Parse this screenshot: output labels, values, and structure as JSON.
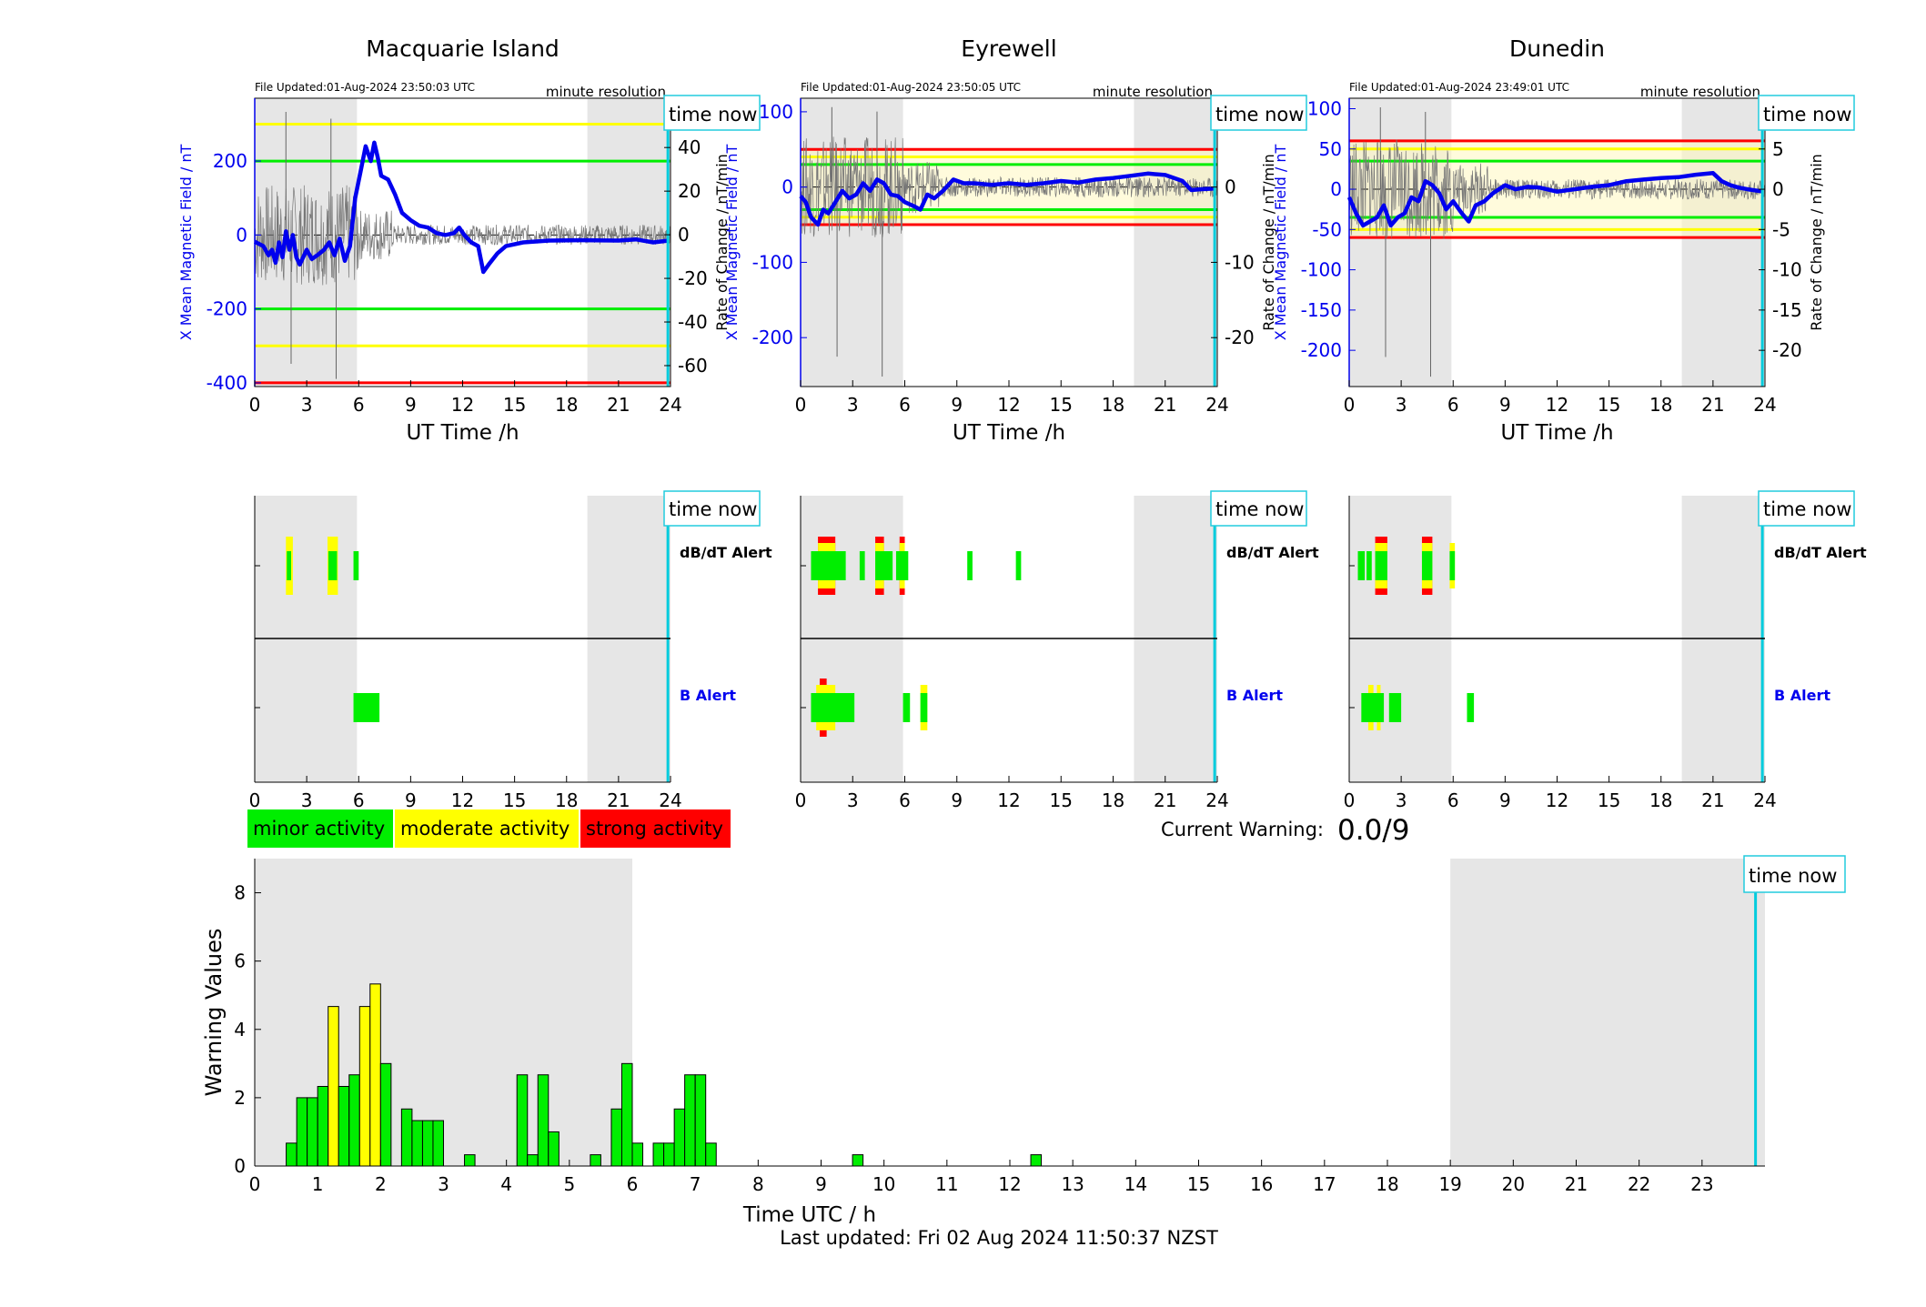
{
  "stations": [
    {
      "name": "Macquarie Island",
      "file_updated": "File Updated:01-Aug-2024 23:50:03 UTC",
      "resolution": "minute resolution",
      "time_now_label": "time now",
      "left_ylabel": "X Mean Magnetic Field / nT",
      "right_ylabel": "Rate of Change / nT/min",
      "x_label": "UT Time /h",
      "x_ticks": [
        0,
        3,
        6,
        9,
        12,
        15,
        18,
        21,
        24
      ],
      "left_ylim": [
        -410,
        370
      ],
      "left_ticks": [
        -400,
        -200,
        0,
        200
      ],
      "right_ylim": [
        -69.6,
        62.6
      ],
      "right_ticks": [
        -60,
        -40,
        -20,
        0,
        20,
        40,
        60
      ],
      "thresholds": [
        {
          "value": 300,
          "color": "#ffff00"
        },
        {
          "value": -300,
          "color": "#ffff00"
        },
        {
          "value": 200,
          "color": "#00ee00"
        },
        {
          "value": -200,
          "color": "#00ee00"
        },
        {
          "value": -400,
          "color": "#ff0000"
        }
      ],
      "band": null,
      "night_shading_hours": [
        [
          0,
          5.9
        ],
        [
          19.2,
          24
        ]
      ],
      "time_now_hour": 23.85,
      "field_trace": [
        [
          0,
          -18
        ],
        [
          0.5,
          -30
        ],
        [
          0.8,
          -55
        ],
        [
          1.0,
          -40
        ],
        [
          1.2,
          -75
        ],
        [
          1.4,
          -20
        ],
        [
          1.6,
          -60
        ],
        [
          1.8,
          10
        ],
        [
          2.0,
          -40
        ],
        [
          2.2,
          0
        ],
        [
          2.4,
          -60
        ],
        [
          2.6,
          -80
        ],
        [
          3.0,
          -40
        ],
        [
          3.3,
          -65
        ],
        [
          3.6,
          -55
        ],
        [
          4.0,
          -40
        ],
        [
          4.3,
          -20
        ],
        [
          4.6,
          -55
        ],
        [
          4.9,
          -10
        ],
        [
          5.2,
          -70
        ],
        [
          5.5,
          -30
        ],
        [
          5.8,
          100
        ],
        [
          6.1,
          170
        ],
        [
          6.4,
          240
        ],
        [
          6.7,
          200
        ],
        [
          6.9,
          250
        ],
        [
          7.1,
          210
        ],
        [
          7.3,
          160
        ],
        [
          7.7,
          150
        ],
        [
          8.1,
          110
        ],
        [
          8.5,
          60
        ],
        [
          9.0,
          40
        ],
        [
          9.5,
          25
        ],
        [
          10.0,
          20
        ],
        [
          10.5,
          5
        ],
        [
          11.0,
          0
        ],
        [
          11.5,
          5
        ],
        [
          11.8,
          20
        ],
        [
          12.1,
          0
        ],
        [
          12.5,
          -20
        ],
        [
          12.9,
          -30
        ],
        [
          13.2,
          -100
        ],
        [
          13.5,
          -80
        ],
        [
          14.0,
          -50
        ],
        [
          14.5,
          -30
        ],
        [
          15.5,
          -20
        ],
        [
          17.0,
          -15
        ],
        [
          19.0,
          -14
        ],
        [
          21.0,
          -15
        ],
        [
          22.0,
          -12
        ],
        [
          23.0,
          -20
        ],
        [
          23.9,
          -15
        ]
      ],
      "rate_trace_hint": "fluctuating grey rate-of-change trace",
      "dbdt_blocks": [
        {
          "t0": 1.8,
          "t1": 2.2,
          "color": "#ffff00",
          "tall": true
        },
        {
          "t0": 1.85,
          "t1": 2.1,
          "color": "#00ee00",
          "tall": false
        },
        {
          "t0": 4.2,
          "t1": 4.8,
          "color": "#ffff00",
          "tall": true
        },
        {
          "t0": 4.25,
          "t1": 4.75,
          "color": "#00ee00",
          "tall": false
        },
        {
          "t0": 5.7,
          "t1": 6.0,
          "color": "#00ee00",
          "tall": false
        }
      ],
      "b_blocks": [
        {
          "t0": 5.7,
          "t1": 7.2,
          "color": "#00ee00",
          "tall": false
        }
      ]
    },
    {
      "name": "Eyrewell",
      "file_updated": "File Updated:01-Aug-2024 23:50:05 UTC",
      "resolution": "minute resolution",
      "time_now_label": "time now",
      "left_ylabel": "X Mean Magnetic Field / nT",
      "right_ylabel": "Rate of Change / nT/min",
      "x_label": "UT Time /h",
      "x_ticks": [
        0,
        3,
        6,
        9,
        12,
        15,
        18,
        21,
        24
      ],
      "left_ylim": [
        -265,
        118
      ],
      "left_ticks": [
        -200,
        -100,
        0,
        100
      ],
      "right_ylim": [
        -26.5,
        11.8
      ],
      "right_ticks": [
        -20,
        -10,
        0,
        10
      ],
      "thresholds": [
        {
          "value": 50,
          "color": "#ff0000"
        },
        {
          "value": -50,
          "color": "#ff0000"
        },
        {
          "value": 40,
          "color": "#ffff00"
        },
        {
          "value": -40,
          "color": "#ffff00"
        },
        {
          "value": 30,
          "color": "#00ee00"
        },
        {
          "value": -30,
          "color": "#00ee00"
        }
      ],
      "band": {
        "from": -50,
        "to": 50,
        "color": "#fff8c0"
      },
      "night_shading_hours": [
        [
          0,
          5.9
        ],
        [
          19.2,
          24
        ]
      ],
      "time_now_hour": 23.85,
      "field_trace": [
        [
          0,
          -12
        ],
        [
          0.3,
          -20
        ],
        [
          0.6,
          -40
        ],
        [
          1.0,
          -50
        ],
        [
          1.3,
          -30
        ],
        [
          1.6,
          -35
        ],
        [
          2.0,
          -20
        ],
        [
          2.4,
          -5
        ],
        [
          2.8,
          -15
        ],
        [
          3.2,
          -10
        ],
        [
          3.6,
          5
        ],
        [
          4.0,
          -5
        ],
        [
          4.4,
          10
        ],
        [
          4.8,
          5
        ],
        [
          5.2,
          -10
        ],
        [
          5.6,
          -12
        ],
        [
          6.0,
          -20
        ],
        [
          6.5,
          -25
        ],
        [
          6.9,
          -30
        ],
        [
          7.3,
          -10
        ],
        [
          7.7,
          -15
        ],
        [
          8.2,
          -5
        ],
        [
          8.8,
          10
        ],
        [
          9.4,
          5
        ],
        [
          10.0,
          5
        ],
        [
          11.0,
          3
        ],
        [
          12.0,
          5
        ],
        [
          13.0,
          3
        ],
        [
          14.0,
          5
        ],
        [
          15.0,
          8
        ],
        [
          16.0,
          6
        ],
        [
          17.0,
          10
        ],
        [
          18.0,
          12
        ],
        [
          19.0,
          15
        ],
        [
          20.0,
          18
        ],
        [
          21.0,
          16
        ],
        [
          22.0,
          8
        ],
        [
          22.5,
          -4
        ],
        [
          23.0,
          -3
        ],
        [
          23.9,
          -2
        ]
      ],
      "dbdt_blocks": [
        {
          "t0": 1.0,
          "t1": 2.0,
          "color": "#ff0000",
          "tall": true
        },
        {
          "t0": 1.0,
          "t1": 2.0,
          "color": "#ffff00",
          "tall": "mid"
        },
        {
          "t0": 0.6,
          "t1": 2.6,
          "color": "#00ee00",
          "tall": false
        },
        {
          "t0": 3.4,
          "t1": 3.7,
          "color": "#00ee00",
          "tall": false
        },
        {
          "t0": 4.3,
          "t1": 4.8,
          "color": "#ff0000",
          "tall": true
        },
        {
          "t0": 4.3,
          "t1": 4.8,
          "color": "#ffff00",
          "tall": "mid"
        },
        {
          "t0": 4.3,
          "t1": 5.3,
          "color": "#00ee00",
          "tall": false
        },
        {
          "t0": 5.7,
          "t1": 6.0,
          "color": "#ff0000",
          "tall": true
        },
        {
          "t0": 5.7,
          "t1": 6.0,
          "color": "#ffff00",
          "tall": "mid"
        },
        {
          "t0": 5.5,
          "t1": 6.2,
          "color": "#00ee00",
          "tall": false
        },
        {
          "t0": 9.6,
          "t1": 9.9,
          "color": "#00ee00",
          "tall": false
        },
        {
          "t0": 12.4,
          "t1": 12.7,
          "color": "#00ee00",
          "tall": false
        }
      ],
      "b_blocks": [
        {
          "t0": 1.1,
          "t1": 1.5,
          "color": "#ff0000",
          "tall": true
        },
        {
          "t0": 0.9,
          "t1": 2.0,
          "color": "#ffff00",
          "tall": "mid"
        },
        {
          "t0": 0.6,
          "t1": 3.1,
          "color": "#00ee00",
          "tall": false
        },
        {
          "t0": 5.9,
          "t1": 6.3,
          "color": "#00ee00",
          "tall": false
        },
        {
          "t0": 6.9,
          "t1": 7.3,
          "color": "#ffff00",
          "tall": "mid"
        },
        {
          "t0": 6.9,
          "t1": 7.3,
          "color": "#00ee00",
          "tall": false
        }
      ]
    },
    {
      "name": "Dunedin",
      "file_updated": "File Updated:01-Aug-2024 23:49:01 UTC",
      "resolution": "minute resolution",
      "time_now_label": "time now",
      "left_ylabel": "X Mean Magnetic Field / nT",
      "right_ylabel": "Rate of Change / nT/min",
      "x_label": "UT Time /h",
      "x_ticks": [
        0,
        3,
        6,
        9,
        12,
        15,
        18,
        21,
        24
      ],
      "left_ylim": [
        -245,
        113
      ],
      "left_ticks": [
        -200,
        -150,
        -100,
        -50,
        0,
        50,
        100
      ],
      "right_ylim": [
        -24.5,
        11.3
      ],
      "right_ticks": [
        -20,
        -15,
        -10,
        -5,
        0,
        5,
        10
      ],
      "thresholds": [
        {
          "value": 60,
          "color": "#ff0000"
        },
        {
          "value": -60,
          "color": "#ff0000"
        },
        {
          "value": 50,
          "color": "#ffff00"
        },
        {
          "value": -50,
          "color": "#ffff00"
        },
        {
          "value": 35,
          "color": "#00ee00"
        },
        {
          "value": -35,
          "color": "#00ee00"
        }
      ],
      "band": {
        "from": -60,
        "to": 60,
        "color": "#fff8c0"
      },
      "night_shading_hours": [
        [
          0,
          5.9
        ],
        [
          19.2,
          24
        ]
      ],
      "time_now_hour": 23.85,
      "field_trace": [
        [
          0,
          -10
        ],
        [
          0.4,
          -30
        ],
        [
          0.8,
          -45
        ],
        [
          1.2,
          -40
        ],
        [
          1.6,
          -35
        ],
        [
          2.0,
          -20
        ],
        [
          2.4,
          -45
        ],
        [
          2.8,
          -35
        ],
        [
          3.2,
          -30
        ],
        [
          3.6,
          -10
        ],
        [
          4.0,
          -15
        ],
        [
          4.4,
          10
        ],
        [
          4.8,
          5
        ],
        [
          5.2,
          -5
        ],
        [
          5.6,
          -25
        ],
        [
          6.0,
          -15
        ],
        [
          6.5,
          -30
        ],
        [
          6.9,
          -40
        ],
        [
          7.3,
          -20
        ],
        [
          7.8,
          -15
        ],
        [
          8.3,
          -5
        ],
        [
          9.0,
          5
        ],
        [
          9.6,
          0
        ],
        [
          10.3,
          3
        ],
        [
          11.0,
          2
        ],
        [
          12.0,
          -3
        ],
        [
          13.0,
          0
        ],
        [
          14.0,
          3
        ],
        [
          15.0,
          5
        ],
        [
          16.0,
          10
        ],
        [
          17.0,
          12
        ],
        [
          18.0,
          14
        ],
        [
          19.0,
          15
        ],
        [
          20.0,
          18
        ],
        [
          21.0,
          20
        ],
        [
          21.5,
          10
        ],
        [
          22.0,
          5
        ],
        [
          22.5,
          2
        ],
        [
          23.0,
          0
        ],
        [
          23.9,
          -3
        ]
      ],
      "dbdt_blocks": [
        {
          "t0": 1.5,
          "t1": 2.2,
          "color": "#ff0000",
          "tall": true
        },
        {
          "t0": 1.5,
          "t1": 2.2,
          "color": "#ffff00",
          "tall": "mid"
        },
        {
          "t0": 0.5,
          "t1": 0.9,
          "color": "#00ee00",
          "tall": false
        },
        {
          "t0": 1.0,
          "t1": 1.3,
          "color": "#00ee00",
          "tall": false
        },
        {
          "t0": 1.5,
          "t1": 2.2,
          "color": "#00ee00",
          "tall": false
        },
        {
          "t0": 4.2,
          "t1": 4.8,
          "color": "#ff0000",
          "tall": true
        },
        {
          "t0": 4.2,
          "t1": 4.8,
          "color": "#ffff00",
          "tall": "mid"
        },
        {
          "t0": 4.2,
          "t1": 4.8,
          "color": "#00ee00",
          "tall": false
        },
        {
          "t0": 5.8,
          "t1": 6.1,
          "color": "#ffff00",
          "tall": "mid"
        },
        {
          "t0": 5.8,
          "t1": 6.1,
          "color": "#00ee00",
          "tall": false
        }
      ],
      "b_blocks": [
        {
          "t0": 1.1,
          "t1": 1.4,
          "color": "#ffff00",
          "tall": "mid"
        },
        {
          "t0": 1.6,
          "t1": 1.8,
          "color": "#ffff00",
          "tall": "mid"
        },
        {
          "t0": 0.7,
          "t1": 2.0,
          "color": "#00ee00",
          "tall": false
        },
        {
          "t0": 2.3,
          "t1": 3.0,
          "color": "#00ee00",
          "tall": false
        },
        {
          "t0": 6.8,
          "t1": 7.2,
          "color": "#00ee00",
          "tall": false
        }
      ]
    }
  ],
  "alert_labels": {
    "dbdt": "dB/dT Alert",
    "b": "B Alert"
  },
  "legend": [
    {
      "label": "minor activity",
      "color": "#00ee00"
    },
    {
      "label": "moderate activity",
      "color": "#ffff00"
    },
    {
      "label": "strong activity",
      "color": "#ff0000"
    }
  ],
  "current_warning": {
    "label": "Current Warning:",
    "value": "0.0/9"
  },
  "chart_data": {
    "type": "bar",
    "ylabel": "Warning Values",
    "xlabel": "Time UTC / h",
    "xlim": [
      0,
      24
    ],
    "ylim": [
      0,
      9
    ],
    "x_ticks": [
      0,
      1,
      2,
      3,
      4,
      5,
      6,
      7,
      8,
      9,
      10,
      11,
      12,
      13,
      14,
      15,
      16,
      17,
      18,
      19,
      20,
      21,
      22,
      23
    ],
    "y_ticks": [
      0,
      2,
      4,
      6,
      8
    ],
    "bin_width_h": 0.1667,
    "night_shading_hours": [
      [
        0,
        6
      ],
      [
        19,
        24
      ]
    ],
    "time_now_hour": 23.85,
    "time_now_label": "time now",
    "bars": [
      {
        "t": 0.5,
        "v": 0.67,
        "level": "minor"
      },
      {
        "t": 0.667,
        "v": 2.0,
        "level": "minor"
      },
      {
        "t": 0.833,
        "v": 2.0,
        "level": "minor"
      },
      {
        "t": 1.0,
        "v": 2.33,
        "level": "minor"
      },
      {
        "t": 1.167,
        "v": 4.67,
        "level": "moderate"
      },
      {
        "t": 1.333,
        "v": 2.33,
        "level": "minor"
      },
      {
        "t": 1.5,
        "v": 2.67,
        "level": "minor"
      },
      {
        "t": 1.667,
        "v": 4.67,
        "level": "moderate"
      },
      {
        "t": 1.833,
        "v": 5.33,
        "level": "moderate"
      },
      {
        "t": 2.0,
        "v": 3.0,
        "level": "minor"
      },
      {
        "t": 2.333,
        "v": 1.67,
        "level": "minor"
      },
      {
        "t": 2.5,
        "v": 1.33,
        "level": "minor"
      },
      {
        "t": 2.667,
        "v": 1.33,
        "level": "minor"
      },
      {
        "t": 2.833,
        "v": 1.33,
        "level": "minor"
      },
      {
        "t": 3.333,
        "v": 0.33,
        "level": "minor"
      },
      {
        "t": 4.167,
        "v": 2.67,
        "level": "minor"
      },
      {
        "t": 4.333,
        "v": 0.33,
        "level": "minor"
      },
      {
        "t": 4.5,
        "v": 2.67,
        "level": "minor"
      },
      {
        "t": 4.667,
        "v": 1.0,
        "level": "minor"
      },
      {
        "t": 5.333,
        "v": 0.33,
        "level": "minor"
      },
      {
        "t": 5.667,
        "v": 1.67,
        "level": "minor"
      },
      {
        "t": 5.833,
        "v": 3.0,
        "level": "minor"
      },
      {
        "t": 6.0,
        "v": 0.67,
        "level": "minor"
      },
      {
        "t": 6.333,
        "v": 0.67,
        "level": "minor"
      },
      {
        "t": 6.5,
        "v": 0.67,
        "level": "minor"
      },
      {
        "t": 6.667,
        "v": 1.67,
        "level": "minor"
      },
      {
        "t": 6.833,
        "v": 2.67,
        "level": "minor"
      },
      {
        "t": 7.0,
        "v": 2.67,
        "level": "minor"
      },
      {
        "t": 7.167,
        "v": 0.67,
        "level": "minor"
      },
      {
        "t": 9.5,
        "v": 0.33,
        "level": "minor"
      },
      {
        "t": 12.333,
        "v": 0.33,
        "level": "minor"
      }
    ],
    "level_colors": {
      "minor": "#00ee00",
      "moderate": "#ffff00",
      "strong": "#ff0000"
    }
  },
  "footer": "Last updated: Fri 02 Aug 2024 11:50:37 NZST"
}
